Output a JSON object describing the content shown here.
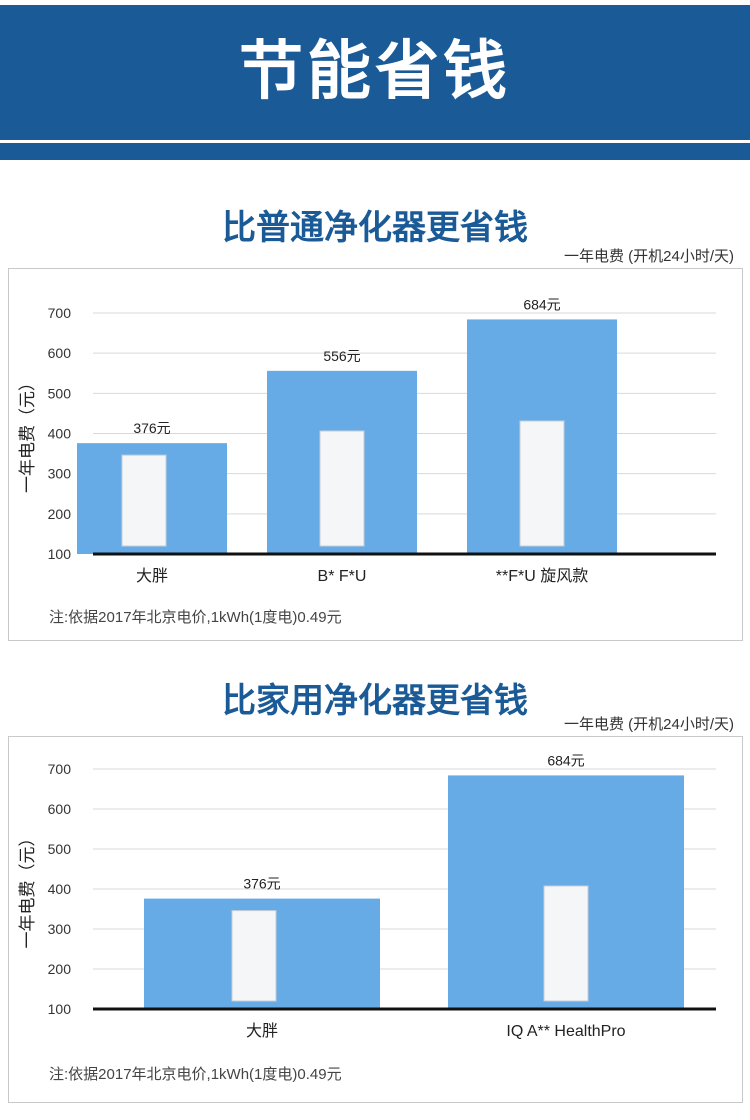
{
  "page": {
    "banner_title": "节能省钱",
    "note": "注:依据2017年北京电价,1kWh(1度电)0.49元"
  },
  "sections": [
    {
      "title": "比普通净化器更省钱",
      "unit": "一年电费 (开机24小时/天)"
    },
    {
      "title": "比家用净化器更省钱",
      "unit": "一年电费 (开机24小时/天)"
    }
  ],
  "colors": {
    "banner": "#1a5a96",
    "bar": "#67abe6",
    "title": "#1a5a96"
  },
  "chart_data": [
    {
      "type": "bar",
      "title": "比普通净化器更省钱",
      "subtitle": "一年电费 (开机24小时/天)",
      "ylabel": "一年电费（元）",
      "xlabel": "",
      "categories": [
        "大胖",
        "B* F*U",
        "**F*U 旋风款"
      ],
      "values": [
        376,
        556,
        684
      ],
      "value_labels": [
        "376元",
        "556元",
        "684元"
      ],
      "yticks": [
        "100",
        "200",
        "300",
        "400",
        "500",
        "600",
        "700"
      ],
      "ylim": [
        100,
        700
      ],
      "grid": true,
      "legend": "none"
    },
    {
      "type": "bar",
      "title": "比家用净化器更省钱",
      "subtitle": "一年电费 (开机24小时/天)",
      "ylabel": "一年电费（元）",
      "xlabel": "",
      "categories": [
        "大胖",
        "IQ A** HealthPro"
      ],
      "values": [
        376,
        684
      ],
      "value_labels": [
        "376元",
        "684元"
      ],
      "yticks": [
        "100",
        "200",
        "300",
        "400",
        "500",
        "600",
        "700"
      ],
      "ylim": [
        100,
        700
      ],
      "grid": true,
      "legend": "none"
    }
  ]
}
